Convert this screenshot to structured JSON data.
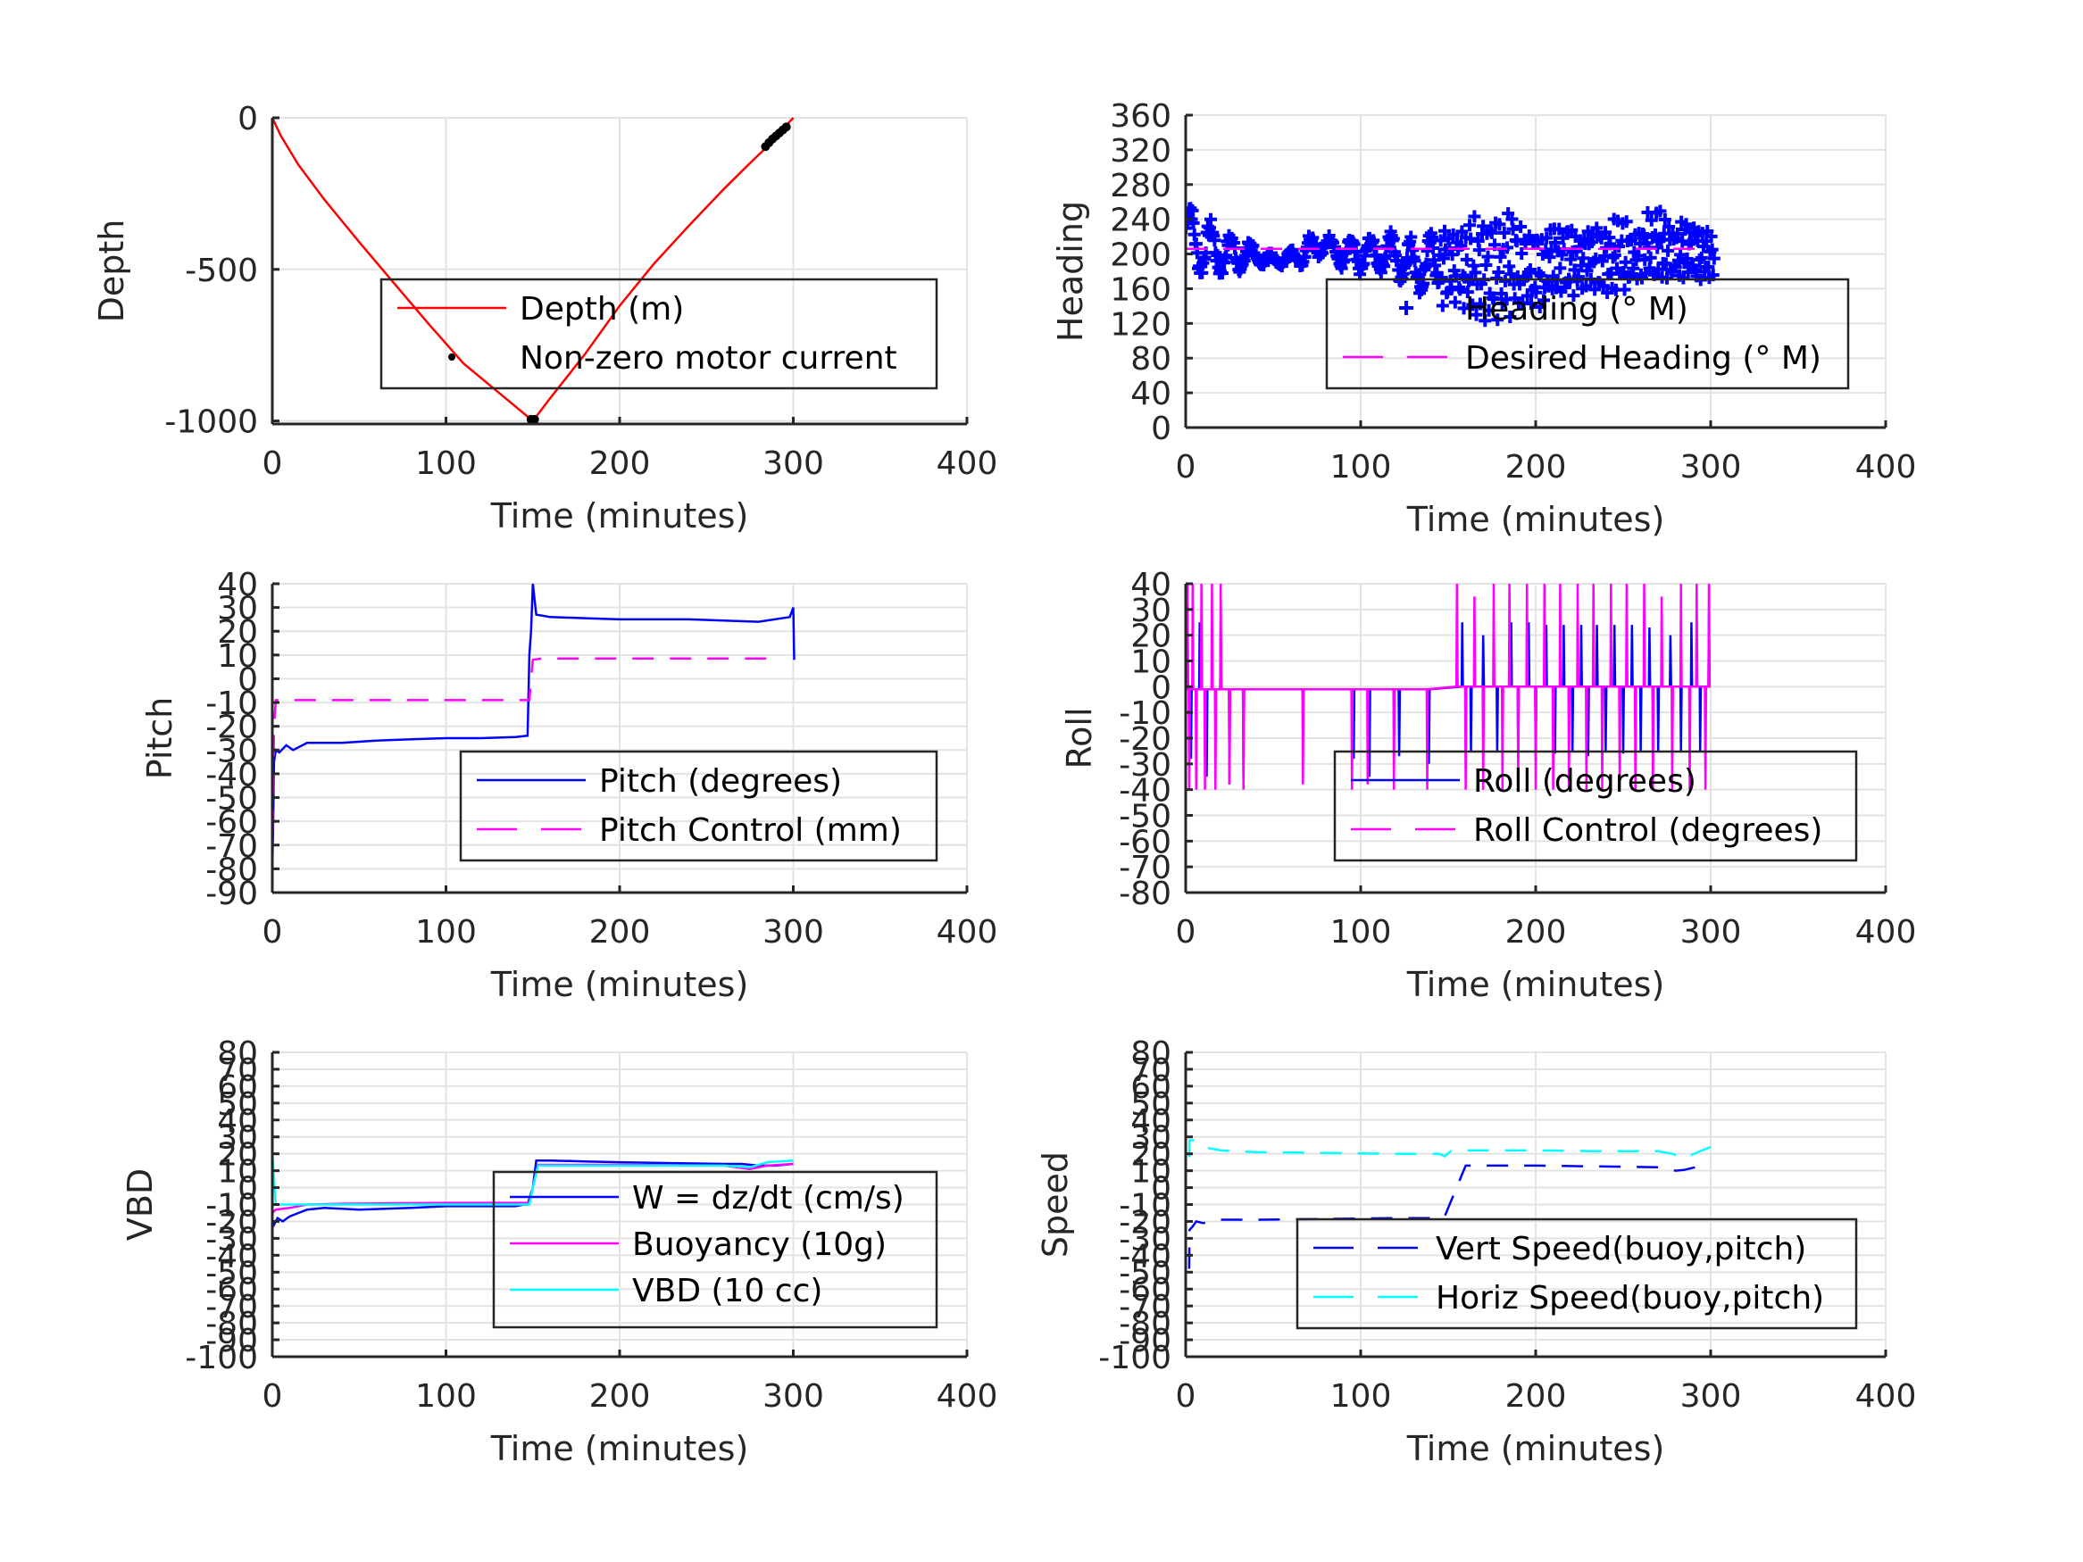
{
  "figure": {
    "background": "#ffffff",
    "text_color": "#262626"
  },
  "chart_data": [
    {
      "id": "depth",
      "type": "line",
      "title": "",
      "xlabel": "Time (minutes)",
      "ylabel": "Depth",
      "xlim": [
        0,
        400
      ],
      "ylim": [
        -1010,
        0
      ],
      "xticks": [
        0,
        100,
        200,
        300,
        400
      ],
      "yticks": [
        0,
        -500,
        -1000
      ],
      "ytick_labels": [
        "0",
        "-500",
        "-1000"
      ],
      "grid": true,
      "legend_position": "center-right",
      "series": [
        {
          "name": "Depth (m)",
          "style": "solid",
          "marker": "none",
          "color": "#ff0000",
          "x": [
            0,
            5,
            15,
            30,
            50,
            70,
            90,
            110,
            130,
            150,
            160,
            180,
            200,
            220,
            240,
            260,
            275,
            285,
            295,
            300
          ],
          "y": [
            0,
            -60,
            -155,
            -270,
            -410,
            -545,
            -680,
            -810,
            -905,
            -1000,
            -925,
            -780,
            -620,
            -480,
            -355,
            -235,
            -150,
            -95,
            -30,
            0
          ]
        },
        {
          "name": "Non-zero motor current",
          "style": "none",
          "marker": "dot",
          "color": "#000000",
          "x": [
            149,
            150,
            151,
            284,
            286,
            288,
            290,
            292,
            294,
            296
          ],
          "y": [
            -995,
            -1000,
            -995,
            -95,
            -82,
            -70,
            -60,
            -50,
            -40,
            -30
          ]
        }
      ]
    },
    {
      "id": "heading",
      "type": "scatter",
      "title": "",
      "xlabel": "Time (minutes)",
      "ylabel": "Heading",
      "xlim": [
        0,
        400
      ],
      "ylim": [
        0,
        360
      ],
      "xticks": [
        0,
        100,
        200,
        300,
        400
      ],
      "yticks": [
        0,
        40,
        80,
        120,
        160,
        200,
        240,
        280,
        320,
        360
      ],
      "grid": true,
      "legend_position": "bottom-right",
      "series": [
        {
          "name": "Heading (° M)",
          "style": "none",
          "marker": "plus",
          "color": "#0000ff",
          "envelope": [
            [
              0,
              180,
              280
            ],
            [
              5,
              175,
              250
            ],
            [
              15,
              170,
              240
            ],
            [
              25,
              175,
              225
            ],
            [
              35,
              180,
              220
            ],
            [
              50,
              185,
              200
            ],
            [
              60,
              185,
              205
            ],
            [
              70,
              185,
              225
            ],
            [
              80,
              200,
              225
            ],
            [
              90,
              180,
              215
            ],
            [
              100,
              175,
              225
            ],
            [
              110,
              180,
              220
            ],
            [
              120,
              170,
              230
            ],
            [
              130,
              155,
              220
            ],
            [
              140,
              150,
              225
            ],
            [
              150,
              130,
              240
            ],
            [
              160,
              125,
              245
            ],
            [
              170,
              120,
              250
            ],
            [
              180,
              125,
              255
            ],
            [
              190,
              125,
              245
            ],
            [
              200,
              135,
              240
            ],
            [
              220,
              150,
              240
            ],
            [
              240,
              150,
              240
            ],
            [
              260,
              160,
              245
            ],
            [
              270,
              165,
              255
            ],
            [
              280,
              160,
              240
            ],
            [
              290,
              165,
              245
            ],
            [
              300,
              170,
              235
            ]
          ]
        },
        {
          "name": "Desired Heading (° M)",
          "style": "dashed",
          "marker": "none",
          "color": "#ff00ff",
          "x": [
            0,
            300
          ],
          "y": [
            206,
            206
          ]
        }
      ]
    },
    {
      "id": "pitch",
      "type": "line",
      "title": "",
      "xlabel": "Time (minutes)",
      "ylabel": "Pitch",
      "xlim": [
        0,
        400
      ],
      "ylim": [
        -90,
        40
      ],
      "xticks": [
        0,
        100,
        200,
        300,
        400
      ],
      "yticks": [
        -90,
        -80,
        -70,
        -60,
        -50,
        -40,
        -30,
        -20,
        -10,
        0,
        10,
        20,
        30,
        40
      ],
      "grid": true,
      "legend_position": "bottom-right",
      "series": [
        {
          "name": "Pitch (degrees)",
          "style": "solid",
          "marker": "none",
          "color": "#0000ff",
          "x": [
            0,
            0.5,
            1,
            2,
            4,
            8,
            12,
            20,
            40,
            60,
            80,
            100,
            120,
            140,
            147,
            148,
            149,
            150,
            152,
            160,
            180,
            200,
            220,
            240,
            260,
            280,
            298,
            300,
            300.5
          ],
          "y": [
            -80,
            -60,
            -35,
            -30,
            -31,
            -28,
            -30,
            -27,
            -27,
            -26,
            -25.5,
            -25,
            -25,
            -24.5,
            -24,
            10,
            20,
            40,
            27,
            26,
            25.5,
            25,
            25,
            25,
            24.5,
            24,
            26,
            30,
            8
          ]
        },
        {
          "name": "Pitch Control (mm)",
          "style": "dashed",
          "marker": "none",
          "color": "#ff00ff",
          "x": [
            0,
            1,
            2,
            148,
            149,
            150,
            155,
            290
          ],
          "y": [
            -80,
            -20,
            -9,
            -9,
            0,
            8,
            8.5,
            8.5
          ]
        }
      ]
    },
    {
      "id": "roll",
      "type": "line",
      "title": "",
      "xlabel": "Time (minutes)",
      "ylabel": "Roll",
      "xlim": [
        0,
        400
      ],
      "ylim": [
        -80,
        40
      ],
      "xticks": [
        0,
        100,
        200,
        300,
        400
      ],
      "yticks": [
        -80,
        -70,
        -60,
        -50,
        -40,
        -30,
        -20,
        -10,
        0,
        10,
        20,
        30,
        40
      ],
      "grid": true,
      "legend_position": "bottom-right",
      "baseline": {
        "early": -1,
        "late": 0
      },
      "series": [
        {
          "name": "Roll (degrees)",
          "style": "solid",
          "marker": "none",
          "color": "#0000ff",
          "spikes": [
            [
              1,
              32
            ],
            [
              3,
              -28
            ],
            [
              8,
              25
            ],
            [
              12,
              -35
            ],
            [
              20,
              25
            ],
            [
              25,
              -38
            ],
            [
              33,
              -35
            ],
            [
              96,
              -28
            ],
            [
              105,
              -35
            ],
            [
              122,
              -27
            ],
            [
              139,
              -30
            ],
            [
              158,
              25
            ],
            [
              163,
              -25
            ],
            [
              170,
              20
            ],
            [
              178,
              -25
            ],
            [
              186,
              25
            ],
            [
              190,
              -28
            ],
            [
              196,
              25
            ],
            [
              200,
              -25
            ],
            [
              206,
              24
            ],
            [
              211,
              -26
            ],
            [
              216,
              24
            ],
            [
              221,
              -25
            ],
            [
              226,
              24
            ],
            [
              230,
              -27
            ],
            [
              235,
              24
            ],
            [
              240,
              -25
            ],
            [
              245,
              24
            ],
            [
              250,
              -26
            ],
            [
              255,
              24
            ],
            [
              260,
              -25
            ],
            [
              265,
              23
            ],
            [
              270,
              -25
            ],
            [
              277,
              20
            ],
            [
              283,
              -25
            ],
            [
              289,
              25
            ],
            [
              294,
              -25
            ],
            [
              299,
              28
            ]
          ]
        },
        {
          "name": "Roll Control (degrees)",
          "style": "dashed",
          "marker": "none",
          "color": "#ff00ff",
          "spikes": [
            [
              1,
              40
            ],
            [
              2,
              -40
            ],
            [
              4,
              40
            ],
            [
              6,
              -40
            ],
            [
              9,
              40
            ],
            [
              11,
              -40
            ],
            [
              15,
              40
            ],
            [
              17,
              -40
            ],
            [
              20,
              40
            ],
            [
              25,
              -38
            ],
            [
              33,
              -40
            ],
            [
              67,
              -38
            ],
            [
              95,
              -40
            ],
            [
              104,
              -38
            ],
            [
              119,
              -40
            ],
            [
              138,
              -40
            ],
            [
              155,
              40
            ],
            [
              160,
              -40
            ],
            [
              165,
              35
            ],
            [
              170,
              -40
            ],
            [
              176,
              40
            ],
            [
              181,
              -40
            ],
            [
              185,
              40
            ],
            [
              190,
              -40
            ],
            [
              195,
              40
            ],
            [
              200,
              -40
            ],
            [
              205,
              40
            ],
            [
              210,
              -40
            ],
            [
              214,
              40
            ],
            [
              219,
              -40
            ],
            [
              224,
              40
            ],
            [
              229,
              -40
            ],
            [
              233,
              40
            ],
            [
              238,
              -40
            ],
            [
              243,
              40
            ],
            [
              248,
              -40
            ],
            [
              252,
              40
            ],
            [
              257,
              -40
            ],
            [
              262,
              40
            ],
            [
              267,
              -40
            ],
            [
              272,
              35
            ],
            [
              278,
              -40
            ],
            [
              283,
              40
            ],
            [
              288,
              -40
            ],
            [
              292,
              40
            ],
            [
              297,
              -40
            ],
            [
              299,
              40
            ]
          ]
        }
      ]
    },
    {
      "id": "vbd",
      "type": "line",
      "title": "",
      "xlabel": "Time (minutes)",
      "ylabel": "VBD",
      "xlim": [
        0,
        400
      ],
      "ylim": [
        -100,
        80
      ],
      "xticks": [
        0,
        100,
        200,
        300,
        400
      ],
      "yticks": [
        -100,
        -90,
        -80,
        -70,
        -60,
        -50,
        -40,
        -30,
        -20,
        -10,
        0,
        10,
        20,
        30,
        40,
        50,
        60,
        70,
        80
      ],
      "grid": true,
      "legend_position": "bottom-right",
      "series": [
        {
          "name": "W = dz/dt (cm/s)",
          "style": "solid",
          "marker": "none",
          "color": "#0000ff",
          "x": [
            0,
            1,
            3,
            6,
            10,
            15,
            20,
            30,
            50,
            80,
            100,
            120,
            140,
            145,
            147,
            150,
            152,
            160,
            180,
            200,
            230,
            260,
            270,
            280,
            290,
            300
          ],
          "y": [
            -20,
            -22,
            -18,
            -20,
            -17,
            -15,
            -13,
            -12,
            -13,
            -12,
            -11,
            -11,
            -11,
            -10,
            -10,
            0,
            16,
            16,
            15.5,
            15,
            14.5,
            14,
            14,
            13,
            13,
            14
          ]
        },
        {
          "name": "Buoyancy (10g)",
          "style": "solid",
          "marker": "none",
          "color": "#ff00ff",
          "x": [
            0,
            2,
            10,
            20,
            40,
            100,
            145,
            148,
            150,
            153,
            200,
            260,
            275,
            285,
            300
          ],
          "y": [
            -15,
            -13,
            -12,
            -10,
            -9.5,
            -9,
            -9,
            -9,
            0,
            13.5,
            13.5,
            13,
            11,
            13,
            14
          ]
        },
        {
          "name": "VBD (10 cc)",
          "style": "solid",
          "marker": "none",
          "color": "#00ffff",
          "x": [
            0,
            1,
            2,
            50,
            100,
            145,
            148,
            150,
            153,
            200,
            260,
            275,
            285,
            300
          ],
          "y": [
            21,
            5,
            -10,
            -10,
            -10,
            -10,
            -10,
            0,
            13,
            13,
            13,
            12,
            15,
            16
          ]
        }
      ]
    },
    {
      "id": "speed",
      "type": "line",
      "title": "",
      "xlabel": "Time (minutes)",
      "ylabel": "Speed",
      "xlim": [
        0,
        400
      ],
      "ylim": [
        -100,
        80
      ],
      "xticks": [
        0,
        100,
        200,
        300,
        400
      ],
      "yticks": [
        -100,
        -90,
        -80,
        -70,
        -60,
        -50,
        -40,
        -30,
        -20,
        -10,
        0,
        10,
        20,
        30,
        40,
        50,
        60,
        70,
        80
      ],
      "grid": true,
      "legend_position": "bottom-right",
      "series": [
        {
          "name": "Vert Speed(buoy,pitch)",
          "style": "dashed",
          "marker": "none",
          "color": "#0000ff",
          "x": [
            2,
            2.2,
            4,
            6,
            10,
            20,
            40,
            80,
            120,
            145,
            148,
            150,
            160,
            200,
            240,
            270,
            280,
            285,
            295,
            300
          ],
          "y": [
            -48,
            -25,
            -23,
            -20,
            -21,
            -19,
            -19,
            -18.5,
            -18,
            -18,
            -17,
            -12,
            13,
            13,
            12.5,
            12,
            10,
            10.5,
            13,
            14
          ]
        },
        {
          "name": "Horiz Speed(buoy,pitch)",
          "style": "dashed",
          "marker": "none",
          "color": "#00ffff",
          "x": [
            2,
            2.2,
            4,
            10,
            20,
            40,
            80,
            120,
            145,
            148,
            152,
            200,
            240,
            270,
            278,
            285,
            295,
            300
          ],
          "y": [
            18,
            28,
            28,
            24,
            22,
            21,
            20.5,
            20,
            20,
            18.5,
            22,
            22,
            21.5,
            21.5,
            20,
            17.5,
            22,
            24
          ]
        }
      ]
    }
  ]
}
